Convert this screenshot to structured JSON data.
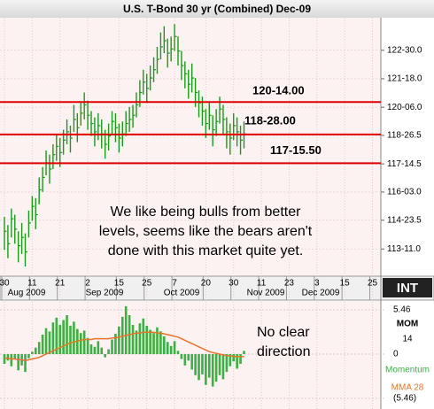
{
  "chart_data": [
    {
      "type": "ohlc",
      "title": "U.S. T-Bond 30 yr (Combined) Dec-09",
      "color": "#000000",
      "categories": [
        "30",
        null,
        null,
        null,
        null,
        null,
        null,
        null,
        "11",
        null,
        null,
        null,
        null,
        null,
        null,
        null,
        "21",
        null,
        null,
        null,
        null,
        null,
        null,
        null,
        "2",
        null,
        null,
        null,
        null,
        null,
        null,
        null,
        null,
        "15",
        null,
        null,
        null,
        null,
        null,
        null,
        null,
        "25",
        null,
        null,
        null,
        null,
        null,
        null,
        null,
        "7",
        null,
        null,
        null,
        null,
        null,
        null,
        null,
        null,
        "20",
        null,
        null,
        null,
        null,
        null,
        null,
        null,
        "30",
        null,
        null,
        null,
        null,
        null,
        null,
        null,
        "11",
        null,
        null,
        null,
        null,
        null,
        null,
        null,
        "23",
        null,
        null,
        null,
        null,
        null,
        null,
        null,
        "3",
        null,
        null,
        null,
        null,
        null,
        null,
        null,
        "15",
        null,
        null,
        null,
        null,
        null,
        null,
        null,
        "25",
        null
      ],
      "months": [
        "Aug 2009",
        "Sep 2009",
        "Oct 2009",
        "Nov 2009",
        "Dec 2009"
      ],
      "high": [
        114.9,
        114.5,
        115.3,
        115.0,
        114.2,
        114.6,
        114.1,
        115.2,
        115.9,
        115.8,
        116.8,
        117.3,
        118.1,
        117.9,
        118.4,
        118.9,
        118.7,
        119.1,
        119.6,
        119.3,
        120.3,
        119.9,
        120.4,
        120.9,
        120.5,
        120.0,
        119.7,
        119.9,
        119.6,
        119.1,
        119.4,
        120.0,
        119.9,
        119.4,
        119.5,
        120.0,
        120.2,
        120.3,
        120.9,
        121.5,
        122.0,
        121.8,
        122.2,
        122.6,
        123.1,
        123.8,
        124.1,
        123.5,
        123.6,
        124.2,
        123.6,
        122.9,
        122.4,
        122.0,
        122.3,
        121.6,
        121.0,
        120.7,
        120.1,
        120.4,
        119.8,
        120.1,
        120.7,
        120.3,
        119.7,
        119.4,
        119.9,
        119.7,
        119.3,
        119.5,
        null,
        null,
        null,
        null,
        null,
        null,
        null,
        null,
        null,
        null,
        null,
        null,
        null,
        null,
        null,
        null,
        null,
        null,
        null,
        null,
        null,
        null,
        null,
        null,
        null,
        null,
        null,
        null,
        null,
        null,
        null,
        null,
        null,
        null,
        null,
        null,
        null,
        null
      ],
      "low": [
        113.3,
        112.9,
        113.9,
        113.6,
        112.7,
        113.1,
        112.5,
        113.9,
        114.7,
        114.3,
        115.5,
        116.1,
        116.9,
        116.5,
        117.2,
        117.6,
        117.3,
        117.9,
        118.4,
        118.0,
        119.0,
        118.5,
        119.3,
        119.6,
        119.1,
        118.8,
        118.3,
        118.6,
        118.2,
        117.7,
        118.1,
        118.9,
        118.5,
        118.0,
        118.3,
        118.8,
        119.0,
        119.2,
        119.7,
        120.2,
        120.8,
        120.4,
        121.0,
        121.4,
        121.8,
        122.5,
        122.8,
        122.1,
        122.4,
        122.9,
        122.2,
        121.5,
        121.1,
        120.6,
        120.9,
        120.2,
        119.7,
        119.3,
        118.7,
        119.1,
        118.3,
        118.8,
        119.4,
        118.9,
        118.2,
        117.9,
        118.6,
        118.3,
        117.9,
        118.2,
        null,
        null,
        null,
        null,
        null,
        null,
        null,
        null,
        null,
        null,
        null,
        null,
        null,
        null,
        null,
        null,
        null,
        null,
        null,
        null,
        null,
        null,
        null,
        null,
        null,
        null,
        null,
        null,
        null,
        null,
        null,
        null,
        null,
        null,
        null,
        null,
        null,
        null
      ],
      "close": [
        114.2,
        113.6,
        114.8,
        114.3,
        113.5,
        113.9,
        113.2,
        114.6,
        115.4,
        115.0,
        116.2,
        116.8,
        117.5,
        117.2,
        117.9,
        118.3,
        118.0,
        118.6,
        119.0,
        118.7,
        119.6,
        119.2,
        119.9,
        120.3,
        119.8,
        119.4,
        119.0,
        119.3,
        118.9,
        118.4,
        118.8,
        119.5,
        119.2,
        118.7,
        118.9,
        119.4,
        119.6,
        119.8,
        120.3,
        120.9,
        121.4,
        121.1,
        121.6,
        122.0,
        122.5,
        123.1,
        123.4,
        122.8,
        123.0,
        123.6,
        122.9,
        122.2,
        121.8,
        121.3,
        121.6,
        120.9,
        120.4,
        120.0,
        119.4,
        119.8,
        119.1,
        119.5,
        120.1,
        119.6,
        119.0,
        118.7,
        119.3,
        119.0,
        118.6,
        118.9,
        null,
        null,
        null,
        null,
        null,
        null,
        null,
        null,
        null,
        null,
        null,
        null,
        null,
        null,
        null,
        null,
        null,
        null,
        null,
        null,
        null,
        null,
        null,
        null,
        null,
        null,
        null,
        null,
        null,
        null,
        null,
        null,
        null,
        null,
        null,
        null,
        null,
        null
      ],
      "ylim": [
        112.03,
        124.51
      ],
      "yticks": [
        {
          "value": 122.9375,
          "label": "122-30.0"
        },
        {
          "value": 121.5625,
          "label": "121-18.0"
        },
        {
          "value": 120.1875,
          "label": "120-06.0"
        },
        {
          "value": 118.828125,
          "label": "118-26.5"
        },
        {
          "value": 117.453125,
          "label": "117-14.5"
        },
        {
          "value": 116.09375,
          "label": "116-03.0"
        },
        {
          "value": 114.734375,
          "label": "114-23.5"
        },
        {
          "value": 113.34375,
          "label": "113-11.0"
        }
      ],
      "grid": true,
      "hlines": [
        {
          "value": 120.4375,
          "label": "120-14.00"
        },
        {
          "value": 118.875,
          "label": "118-28.00"
        },
        {
          "value": 117.484375,
          "label": "117-15.50"
        }
      ],
      "hline_color": "#e00000",
      "note": [
        "We like being bulls from better",
        "levels, seems like the bears aren't",
        "done with this market quite yet."
      ],
      "logo": "INT"
    },
    {
      "type": "momentum",
      "indicator": "MOM",
      "period": 14,
      "series": [
        {
          "name": "Momentum",
          "color": "#3cb043",
          "values": [
            -1.2,
            -0.8,
            -1.5,
            -0.6,
            -2.0,
            -1.4,
            -2.2,
            -0.5,
            0.3,
            0.8,
            1.5,
            2.4,
            3.2,
            2.8,
            3.9,
            4.5,
            3.6,
            4.2,
            4.8,
            3.5,
            4.0,
            3.1,
            2.6,
            2.9,
            2.0,
            1.2,
            0.9,
            1.6,
            0.8,
            -0.4,
            0.6,
            1.8,
            2.5,
            3.4,
            4.6,
            5.9,
            4.8,
            3.6,
            2.9,
            3.8,
            4.4,
            3.5,
            3.0,
            2.6,
            3.3,
            2.8,
            2.2,
            1.5,
            1.0,
            1.6,
            0.4,
            -0.6,
            -1.4,
            -0.8,
            -1.9,
            -2.6,
            -3.2,
            -2.5,
            -3.8,
            -2.9,
            -4.0,
            -3.4,
            -2.6,
            -3.1,
            -2.2,
            -1.5,
            -0.9,
            -1.8,
            -1.2,
            0.4,
            null,
            null,
            null,
            null,
            null,
            null,
            null,
            null,
            null,
            null,
            null,
            null,
            null,
            null,
            null,
            null,
            null,
            null,
            null,
            null,
            null,
            null,
            null,
            null,
            null,
            null,
            null,
            null,
            null,
            null,
            null,
            null,
            null,
            null,
            null,
            null,
            null,
            null
          ]
        },
        {
          "name": "MMA 28",
          "color": "#e8742c",
          "values": [
            -0.5,
            -0.5,
            -0.6,
            -0.6,
            -0.7,
            -0.7,
            -0.8,
            -0.7,
            -0.6,
            -0.5,
            -0.4,
            -0.2,
            0.0,
            0.2,
            0.4,
            0.6,
            0.8,
            1.0,
            1.2,
            1.4,
            1.5,
            1.6,
            1.7,
            1.8,
            1.8,
            1.8,
            1.9,
            1.9,
            1.9,
            1.9,
            1.9,
            2.0,
            2.0,
            2.1,
            2.2,
            2.3,
            2.4,
            2.5,
            2.6,
            2.6,
            2.7,
            2.7,
            2.7,
            2.7,
            2.6,
            2.6,
            2.5,
            2.4,
            2.3,
            2.2,
            2.1,
            1.9,
            1.7,
            1.5,
            1.3,
            1.1,
            0.9,
            0.7,
            0.5,
            0.3,
            0.2,
            0.1,
            0.0,
            -0.1,
            -0.2,
            -0.2,
            -0.3,
            -0.3,
            -0.3,
            -0.3,
            null,
            null,
            null,
            null,
            null,
            null,
            null,
            null,
            null,
            null,
            null,
            null,
            null,
            null,
            null,
            null,
            null,
            null,
            null,
            null,
            null,
            null,
            null,
            null,
            null,
            null,
            null,
            null,
            null,
            null,
            null,
            null,
            null,
            null,
            null,
            null,
            null,
            null
          ]
        }
      ],
      "ylim": [
        -6.55,
        6.55
      ],
      "yticks": [
        {
          "value": 5.46,
          "label": "5.46"
        },
        0,
        {
          "value": -5.46,
          "label": "(5.46)"
        }
      ],
      "note": [
        "No clear",
        "direction"
      ]
    }
  ]
}
